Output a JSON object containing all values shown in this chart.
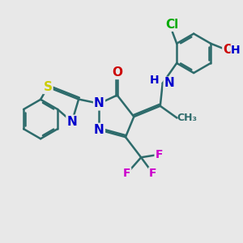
{
  "background_color": "#e8e8e8",
  "bond_color": "#2d6b6b",
  "bond_width": 1.8,
  "atom_colors": {
    "N": "#0000cc",
    "O": "#cc0000",
    "S": "#cccc00",
    "F": "#cc00cc",
    "Cl": "#00aa00",
    "H": "#2d6b6b",
    "C": "#2d6b6b"
  },
  "font_size_atom": 11,
  "font_size_small": 9
}
